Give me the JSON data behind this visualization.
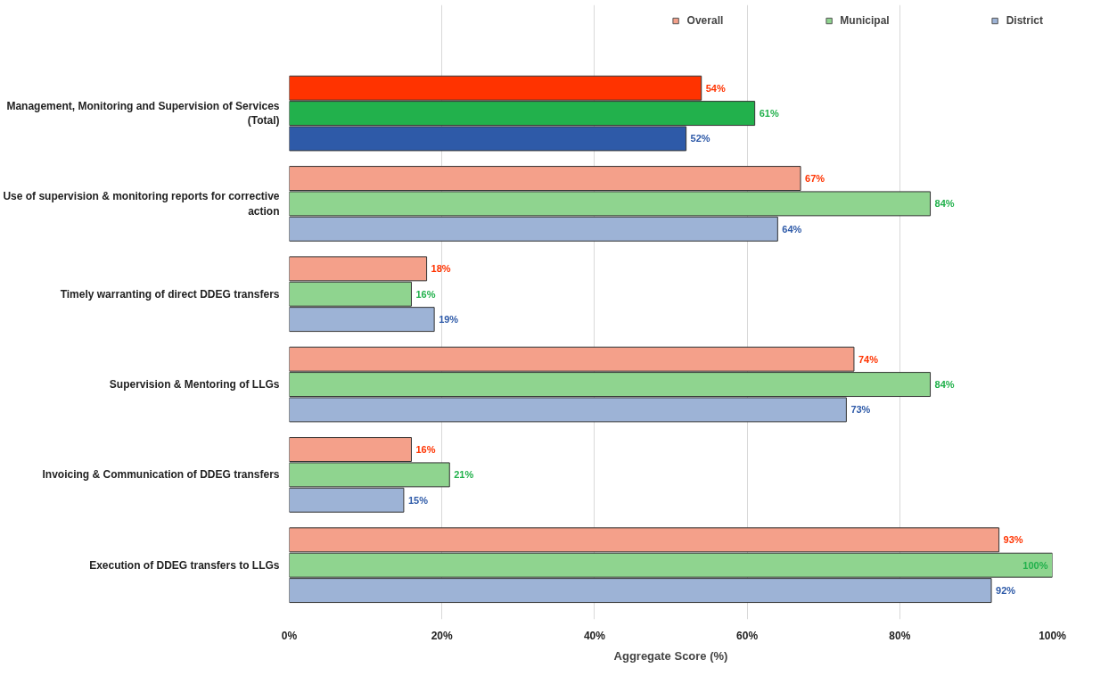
{
  "chart_data": {
    "type": "bar",
    "orientation": "horizontal",
    "xlabel": "Aggregate Score (%)",
    "categories": [
      "Management, Monitoring and Supervision of Services (Total)",
      "Use of supervision & monitoring reports for corrective action",
      "Timely warranting of direct DDEG transfers",
      "Supervision & Mentoring of LLGs",
      "Invoicing & Communication of DDEG transfers",
      "Execution of DDEG transfers to LLGs"
    ],
    "series": [
      {
        "name": "Overall",
        "color": "#f4a08a",
        "colors": [
          "#ff3300",
          "#f4a08a",
          "#f4a08a",
          "#f4a08a",
          "#f4a08a",
          "#f4a08a"
        ],
        "values": [
          54,
          67,
          18,
          74,
          16,
          93
        ],
        "value_labels": [
          "54%",
          "67%",
          "18%",
          "74%",
          "16%",
          "93%"
        ]
      },
      {
        "name": "Municipal",
        "color": "#8fd48f",
        "colors": [
          "#22b14c",
          "#8fd48f",
          "#8fd48f",
          "#8fd48f",
          "#8fd48f",
          "#8fd48f"
        ],
        "values": [
          61,
          84,
          16,
          84,
          21,
          100
        ],
        "value_labels": [
          "61%",
          "84%",
          "16%",
          "84%",
          "21%",
          "100%"
        ]
      },
      {
        "name": "District",
        "color": "#9db3d6",
        "colors": [
          "#2e5aa8",
          "#9db3d6",
          "#9db3d6",
          "#9db3d6",
          "#9db3d6",
          "#9db3d6"
        ],
        "values": [
          52,
          64,
          19,
          73,
          15,
          92
        ],
        "value_labels": [
          "52%",
          "64%",
          "19%",
          "73%",
          "15%",
          "92%"
        ]
      }
    ],
    "xlim": [
      0,
      100
    ],
    "xticks": [
      {
        "value": 0,
        "label": "0%"
      },
      {
        "value": 20,
        "label": "20%"
      },
      {
        "value": 40,
        "label": "40%"
      },
      {
        "value": 60,
        "label": "60%"
      },
      {
        "value": 80,
        "label": "80%"
      },
      {
        "value": 100,
        "label": "100%"
      }
    ],
    "grid": "x",
    "legend": "top"
  }
}
